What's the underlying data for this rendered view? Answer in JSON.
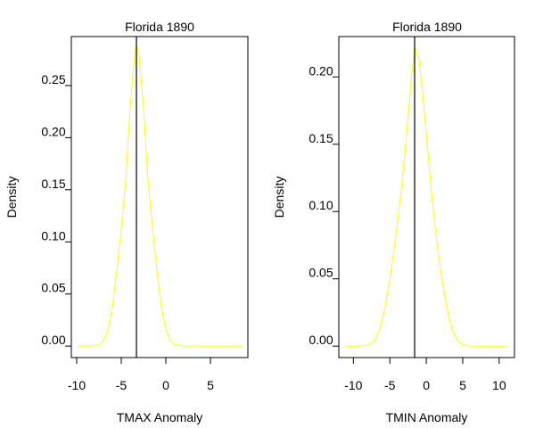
{
  "chart_data": [
    {
      "type": "line",
      "title": "Florida 1890",
      "xlabel": "TMAX Anomaly",
      "ylabel": "Density",
      "xlim": [
        -10.6,
        9.2
      ],
      "ylim": [
        -0.011,
        0.297
      ],
      "x_ticks": [
        -10,
        -5,
        0,
        5
      ],
      "x_tick_labels": [
        "-10",
        "-5",
        "0",
        "5"
      ],
      "y_ticks": [
        0.0,
        0.05,
        0.1,
        0.15,
        0.2,
        0.25
      ],
      "y_tick_labels": [
        "0.00",
        "0.05",
        "0.10",
        "0.15",
        "0.20",
        "0.25"
      ],
      "vline_x": -3.3,
      "series": [
        {
          "color": "#ffff00",
          "x": [
            -9.9,
            -9.0,
            -8.0,
            -7.5,
            -7.0,
            -6.5,
            -6.0,
            -5.5,
            -5.0,
            -4.5,
            -4.0,
            -3.5,
            -3.3,
            -3.0,
            -2.5,
            -2.0,
            -1.5,
            -1.0,
            -0.5,
            0.0,
            0.5,
            1.0,
            2.0,
            4.0,
            6.0,
            8.5
          ],
          "y": [
            0.0,
            0.0,
            0.0003,
            0.0014,
            0.0052,
            0.0155,
            0.0372,
            0.0722,
            0.1137,
            0.1583,
            0.2294,
            0.2785,
            0.2892,
            0.2785,
            0.2294,
            0.1583,
            0.1137,
            0.0722,
            0.0372,
            0.0155,
            0.0052,
            0.0014,
            0.0001,
            0.0,
            0.0,
            0.0
          ]
        }
      ]
    },
    {
      "type": "line",
      "title": "Florida 1890",
      "xlabel": "TMIN Anomaly",
      "ylabel": "Density",
      "xlim": [
        -12.0,
        12.1
      ],
      "ylim": [
        -0.0085,
        0.23
      ],
      "x_ticks": [
        -10,
        -5,
        0,
        5,
        10
      ],
      "x_tick_labels": [
        "-10",
        "-5",
        "0",
        "5",
        "10"
      ],
      "y_ticks": [
        0.0,
        0.05,
        0.1,
        0.15,
        0.2
      ],
      "y_tick_labels": [
        "0.00",
        "0.05",
        "0.10",
        "0.15",
        "0.20"
      ],
      "vline_x": -1.6,
      "series": [
        {
          "color": "#ffff00",
          "x": [
            -11.1,
            -10.0,
            -9.0,
            -8.5,
            -8.0,
            -7.5,
            -7.0,
            -6.5,
            -6.0,
            -5.5,
            -5.0,
            -4.5,
            -4.0,
            -3.5,
            -3.0,
            -2.5,
            -2.0,
            -1.6,
            -1.0,
            -0.5,
            0.0,
            0.5,
            1.0,
            1.5,
            2.0,
            2.5,
            3.0,
            3.5,
            4.0,
            4.5,
            5.0,
            5.5,
            6.0,
            7.0,
            8.0,
            9.0,
            11.2
          ],
          "y": [
            0.0,
            0.0,
            0.0001,
            0.0003,
            0.0009,
            0.0023,
            0.0053,
            0.0109,
            0.0201,
            0.0334,
            0.0498,
            0.0687,
            0.0897,
            0.1133,
            0.1402,
            0.1701,
            0.201,
            0.2225,
            0.2133,
            0.1874,
            0.1577,
            0.1269,
            0.0984,
            0.0744,
            0.0554,
            0.0386,
            0.024,
            0.0135,
            0.0068,
            0.003,
            0.0012,
            0.0004,
            0.0001,
            0.0,
            0.0,
            0.0,
            0.0
          ]
        }
      ]
    }
  ]
}
